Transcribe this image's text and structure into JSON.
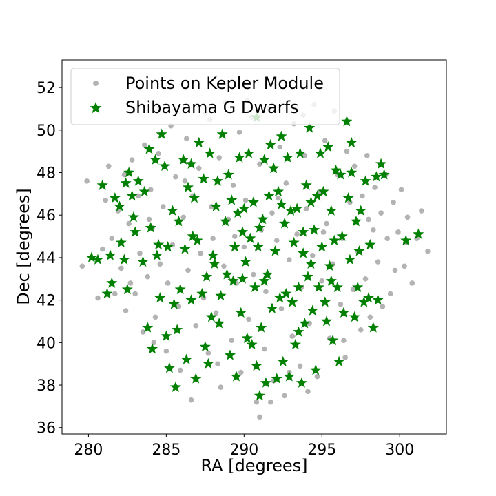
{
  "chart_data": {
    "type": "scatter",
    "xlabel": "RA [degrees]",
    "ylabel": "Dec [degrees]",
    "xlim": [
      278.3,
      303.0
    ],
    "ylim": [
      35.7,
      53.3
    ],
    "xticks": [
      280,
      285,
      290,
      295,
      300
    ],
    "yticks": [
      36,
      38,
      40,
      42,
      44,
      46,
      48,
      50,
      52
    ],
    "grid": false,
    "legend_position": "upper-left",
    "series": [
      {
        "name": "Points on Kepler Module",
        "marker": "circle",
        "color": "#808080",
        "alpha": 0.6,
        "points": [
          [
            279.6,
            43.6
          ],
          [
            279.9,
            47.6
          ],
          [
            280.6,
            42.1
          ],
          [
            280.9,
            44.4
          ],
          [
            281.1,
            46.7
          ],
          [
            281.3,
            48.3
          ],
          [
            281.5,
            44.9
          ],
          [
            281.7,
            42.3
          ],
          [
            281.9,
            46.2
          ],
          [
            282.1,
            43.5
          ],
          [
            282.3,
            47.9
          ],
          [
            282.4,
            41.5
          ],
          [
            282.6,
            45.6
          ],
          [
            282.8,
            48.6
          ],
          [
            283.0,
            42.3
          ],
          [
            283.2,
            46.9
          ],
          [
            283.3,
            44.2
          ],
          [
            283.5,
            40.5
          ],
          [
            283.6,
            49.3
          ],
          [
            283.8,
            43.1
          ],
          [
            284.0,
            47.2
          ],
          [
            284.1,
            45.4
          ],
          [
            284.3,
            41.2
          ],
          [
            284.5,
            48.9
          ],
          [
            284.6,
            43.7
          ],
          [
            284.8,
            46.4
          ],
          [
            285.0,
            39.6
          ],
          [
            285.1,
            42.8
          ],
          [
            285.3,
            50.2
          ],
          [
            285.4,
            44.6
          ],
          [
            285.6,
            47.8
          ],
          [
            285.8,
            41.7
          ],
          [
            285.9,
            38.7
          ],
          [
            286.1,
            45.9
          ],
          [
            286.3,
            49.6
          ],
          [
            286.4,
            43.4
          ],
          [
            286.6,
            37.3
          ],
          [
            286.7,
            46.9
          ],
          [
            286.9,
            40.8
          ],
          [
            287.1,
            48.2
          ],
          [
            287.2,
            44.2
          ],
          [
            287.4,
            42.1
          ],
          [
            287.5,
            50.8
          ],
          [
            287.7,
            39.5
          ],
          [
            287.9,
            46.4
          ],
          [
            288.0,
            44.9
          ],
          [
            288.2,
            41.4
          ],
          [
            288.4,
            48.7
          ],
          [
            288.5,
            37.9
          ],
          [
            288.7,
            43.6
          ],
          [
            288.8,
            51.3
          ],
          [
            289.0,
            45.8
          ],
          [
            289.2,
            40.1
          ],
          [
            289.3,
            47.4
          ],
          [
            289.5,
            42.8
          ],
          [
            289.7,
            49.9
          ],
          [
            289.8,
            38.6
          ],
          [
            290.0,
            44.5
          ],
          [
            290.1,
            46.7
          ],
          [
            290.3,
            41.1
          ],
          [
            290.5,
            50.6
          ],
          [
            290.6,
            43.2
          ],
          [
            290.8,
            37.2
          ],
          [
            291.0,
            48.4
          ],
          [
            291.1,
            45.3
          ],
          [
            291.3,
            39.7
          ],
          [
            291.4,
            42.4
          ],
          [
            291.6,
            51.0
          ],
          [
            291.8,
            46.1
          ],
          [
            291.9,
            38.2
          ],
          [
            292.1,
            44.8
          ],
          [
            292.3,
            49.2
          ],
          [
            292.4,
            41.6
          ],
          [
            292.6,
            37.5
          ],
          [
            292.7,
            47.5
          ],
          [
            292.9,
            43.9
          ],
          [
            293.1,
            40.3
          ],
          [
            293.2,
            50.3
          ],
          [
            293.4,
            45.1
          ],
          [
            293.6,
            38.9
          ],
          [
            293.7,
            42.6
          ],
          [
            293.9,
            48.8
          ],
          [
            294.0,
            46.3
          ],
          [
            294.2,
            40.9
          ],
          [
            294.4,
            44.1
          ],
          [
            294.5,
            51.2
          ],
          [
            294.7,
            38.4
          ],
          [
            294.9,
            47.1
          ],
          [
            295.0,
            42.9
          ],
          [
            295.2,
            49.5
          ],
          [
            295.3,
            45.6
          ],
          [
            295.5,
            40.2
          ],
          [
            295.7,
            43.7
          ],
          [
            295.8,
            50.9
          ],
          [
            296.0,
            47.9
          ],
          [
            296.2,
            41.8
          ],
          [
            296.3,
            44.9
          ],
          [
            296.5,
            39.3
          ],
          [
            296.6,
            49.0
          ],
          [
            296.8,
            46.6
          ],
          [
            297.0,
            42.5
          ],
          [
            297.1,
            48.3
          ],
          [
            297.3,
            44.3
          ],
          [
            297.5,
            40.6
          ],
          [
            297.6,
            46.9
          ],
          [
            297.8,
            43.0
          ],
          [
            297.9,
            48.8
          ],
          [
            298.1,
            41.2
          ],
          [
            298.3,
            45.3
          ],
          [
            298.4,
            47.3
          ],
          [
            298.6,
            43.8
          ],
          [
            298.8,
            46.1
          ],
          [
            298.9,
            41.7
          ],
          [
            299.1,
            47.9
          ],
          [
            299.2,
            44.9
          ],
          [
            299.4,
            42.3
          ],
          [
            299.6,
            46.6
          ],
          [
            299.7,
            43.4
          ],
          [
            299.9,
            45.2
          ],
          [
            300.1,
            47.2
          ],
          [
            300.3,
            43.6
          ],
          [
            300.5,
            45.9
          ],
          [
            300.8,
            42.8
          ],
          [
            301.1,
            44.9
          ],
          [
            301.4,
            46.2
          ],
          [
            301.8,
            44.3
          ],
          [
            286.2,
            47.6
          ],
          [
            289.4,
            45.0
          ],
          [
            292.2,
            46.8
          ],
          [
            295.1,
            45.2
          ],
          [
            291.0,
            36.5
          ],
          [
            291.7,
            37.2
          ],
          [
            294.1,
            37.7
          ],
          [
            288.3,
            39.0
          ],
          [
            296.4,
            40.1
          ],
          [
            284.2,
            40.0
          ],
          [
            283.9,
            45.8
          ],
          [
            298.0,
            45.8
          ],
          [
            290.2,
            51.4
          ],
          [
            287.8,
            50.5
          ],
          [
            293.8,
            50.7
          ],
          [
            282.7,
            42.8
          ],
          [
            300.4,
            44.7
          ],
          [
            292.9,
            38.6
          ]
        ]
      },
      {
        "name": "Shibayama G Dwarfs",
        "marker": "star",
        "color": "#008000",
        "points": [
          [
            280.2,
            44.0
          ],
          [
            280.6,
            43.9
          ],
          [
            280.9,
            47.4
          ],
          [
            281.2,
            42.3
          ],
          [
            281.4,
            44.1
          ],
          [
            281.5,
            42.8
          ],
          [
            281.7,
            46.8
          ],
          [
            282.0,
            46.4
          ],
          [
            282.1,
            44.7
          ],
          [
            282.3,
            43.9
          ],
          [
            282.4,
            47.5
          ],
          [
            282.5,
            42.5
          ],
          [
            282.6,
            48.0
          ],
          [
            282.8,
            46.9
          ],
          [
            283.0,
            45.2
          ],
          [
            283.2,
            47.6
          ],
          [
            283.5,
            43.8
          ],
          [
            283.6,
            47.1
          ],
          [
            283.8,
            40.7
          ],
          [
            283.9,
            49.1
          ],
          [
            284.0,
            45.4
          ],
          [
            284.1,
            39.7
          ],
          [
            284.3,
            48.6
          ],
          [
            284.5,
            44.6
          ],
          [
            284.6,
            42.1
          ],
          [
            284.7,
            49.8
          ],
          [
            284.9,
            48.3
          ],
          [
            285.0,
            40.3
          ],
          [
            285.1,
            44.5
          ],
          [
            285.2,
            38.8
          ],
          [
            285.4,
            46.2
          ],
          [
            285.5,
            41.8
          ],
          [
            285.6,
            37.9
          ],
          [
            285.8,
            45.7
          ],
          [
            285.9,
            42.5
          ],
          [
            286.1,
            48.6
          ],
          [
            286.2,
            44.4
          ],
          [
            286.3,
            39.2
          ],
          [
            286.4,
            47.3
          ],
          [
            286.6,
            42.0
          ],
          [
            286.8,
            46.8
          ],
          [
            286.9,
            38.3
          ],
          [
            287.0,
            44.8
          ],
          [
            287.1,
            49.4
          ],
          [
            287.3,
            42.3
          ],
          [
            287.4,
            47.7
          ],
          [
            287.5,
            39.8
          ],
          [
            287.6,
            43.1
          ],
          [
            287.8,
            48.9
          ],
          [
            287.9,
            41.2
          ],
          [
            288.0,
            44.1
          ],
          [
            288.2,
            46.4
          ],
          [
            288.4,
            40.9
          ],
          [
            288.5,
            42.2
          ],
          [
            288.6,
            49.8
          ],
          [
            288.8,
            45.7
          ],
          [
            288.9,
            43.2
          ],
          [
            289.0,
            47.9
          ],
          [
            289.1,
            39.4
          ],
          [
            289.2,
            46.7
          ],
          [
            289.3,
            42.9
          ],
          [
            289.4,
            44.5
          ],
          [
            289.5,
            38.4
          ],
          [
            289.7,
            48.7
          ],
          [
            289.8,
            41.4
          ],
          [
            289.9,
            45.2
          ],
          [
            290.0,
            46.3
          ],
          [
            290.1,
            43.8
          ],
          [
            290.2,
            40.2
          ],
          [
            290.3,
            48.9
          ],
          [
            290.4,
            44.9
          ],
          [
            290.5,
            39.9
          ],
          [
            290.6,
            46.6
          ],
          [
            290.7,
            42.6
          ],
          [
            290.8,
            50.6
          ],
          [
            290.9,
            44.5
          ],
          [
            291.0,
            37.5
          ],
          [
            291.1,
            40.7
          ],
          [
            291.2,
            45.8
          ],
          [
            291.3,
            48.6
          ],
          [
            291.4,
            38.1
          ],
          [
            291.5,
            43.2
          ],
          [
            291.6,
            46.9
          ],
          [
            291.7,
            49.3
          ],
          [
            291.8,
            41.6
          ],
          [
            291.9,
            48.2
          ],
          [
            292.0,
            44.3
          ],
          [
            292.1,
            38.3
          ],
          [
            292.2,
            47.1
          ],
          [
            292.3,
            42.1
          ],
          [
            292.4,
            49.7
          ],
          [
            292.5,
            39.1
          ],
          [
            292.6,
            45.6
          ],
          [
            292.7,
            42.3
          ],
          [
            292.8,
            48.7
          ],
          [
            292.9,
            38.4
          ],
          [
            293.0,
            46.2
          ],
          [
            293.1,
            41.9
          ],
          [
            293.2,
            44.7
          ],
          [
            293.3,
            39.9
          ],
          [
            293.4,
            46.3
          ],
          [
            293.5,
            42.6
          ],
          [
            293.6,
            48.9
          ],
          [
            293.7,
            38.1
          ],
          [
            293.8,
            45.2
          ],
          [
            293.9,
            40.9
          ],
          [
            294.0,
            47.4
          ],
          [
            294.1,
            43.1
          ],
          [
            294.2,
            50.1
          ],
          [
            294.3,
            46.6
          ],
          [
            294.4,
            41.5
          ],
          [
            294.5,
            45.3
          ],
          [
            294.6,
            38.7
          ],
          [
            294.7,
            46.9
          ],
          [
            294.8,
            42.6
          ],
          [
            294.9,
            48.9
          ],
          [
            295.0,
            44.5
          ],
          [
            295.1,
            47.1
          ],
          [
            295.2,
            41.9
          ],
          [
            295.4,
            49.2
          ],
          [
            295.5,
            43.6
          ],
          [
            295.6,
            46.2
          ],
          [
            295.7,
            40.1
          ],
          [
            295.8,
            44.8
          ],
          [
            295.9,
            48.1
          ],
          [
            296.0,
            42.6
          ],
          [
            296.1,
            39.1
          ],
          [
            296.2,
            47.9
          ],
          [
            296.3,
            45.0
          ],
          [
            296.4,
            41.4
          ],
          [
            296.6,
            50.4
          ],
          [
            296.7,
            46.8
          ],
          [
            296.8,
            43.9
          ],
          [
            296.9,
            48.0
          ],
          [
            297.1,
            41.2
          ],
          [
            297.2,
            45.7
          ],
          [
            297.3,
            42.6
          ],
          [
            297.5,
            46.2
          ],
          [
            297.7,
            41.9
          ],
          [
            297.8,
            47.6
          ],
          [
            298.0,
            42.1
          ],
          [
            298.1,
            44.6
          ],
          [
            298.3,
            40.7
          ],
          [
            298.5,
            47.8
          ],
          [
            298.6,
            42.0
          ],
          [
            298.8,
            48.4
          ],
          [
            299.0,
            47.9
          ],
          [
            300.4,
            44.8
          ],
          [
            301.2,
            45.1
          ],
          [
            282.9,
            45.9
          ],
          [
            284.4,
            44.1
          ],
          [
            286.6,
            48.4
          ],
          [
            288.1,
            43.7
          ],
          [
            289.6,
            46.1
          ],
          [
            291.3,
            42.9
          ],
          [
            292.4,
            46.5
          ],
          [
            294.3,
            43.7
          ],
          [
            295.3,
            41.0
          ],
          [
            297.4,
            44.3
          ],
          [
            285.7,
            40.6
          ],
          [
            287.7,
            39.0
          ],
          [
            290.8,
            38.9
          ],
          [
            293.5,
            40.5
          ],
          [
            289.9,
            43.0
          ],
          [
            291.0,
            45.4
          ],
          [
            293.8,
            44.2
          ],
          [
            286.7,
            45.0
          ],
          [
            288.3,
            47.6
          ],
          [
            295.6,
            42.9
          ],
          [
            296.9,
            49.4
          ]
        ]
      }
    ]
  }
}
